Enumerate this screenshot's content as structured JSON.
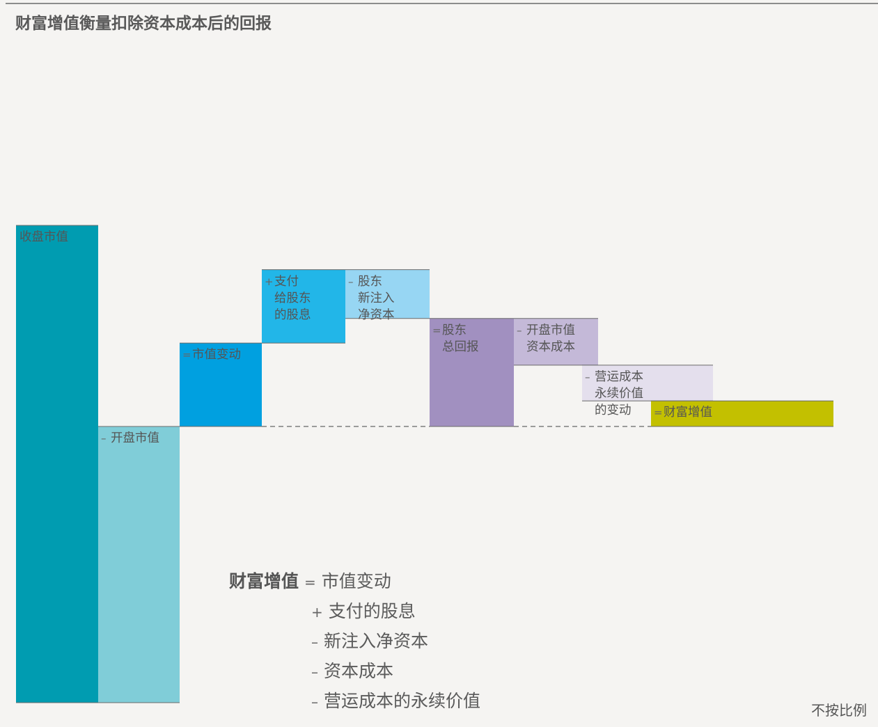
{
  "title": "财富增值衡量扣除资本成本后的回报",
  "colors": {
    "closing_market_value": "#009cb1",
    "opening_market_value": "#80cdd8",
    "market_value_change": "#00a0e0",
    "dividends": "#22b6e8",
    "new_equity": "#97d6f3",
    "total_shareholder_return": "#a190c0",
    "opening_capital_cost": "#c4b9d8",
    "perpetuity_change": "#e4dfed",
    "wealth_added": "#c3c000"
  },
  "chart_data": {
    "type": "waterfall",
    "title": "财富增值衡量扣除资本成本后的回报",
    "scale_note": "不按比例",
    "steps": [
      {
        "label": "收盘市值",
        "op": "",
        "start": 0,
        "end": 100
      },
      {
        "label": "开盘市值",
        "op": "–",
        "start": 100,
        "end": 0
      },
      {
        "label": "市值变动",
        "op": "=",
        "start": 0,
        "end": 41.5
      },
      {
        "label": "支付\n给股东\n的股息",
        "op": "+",
        "start": 41.5,
        "end": 78
      },
      {
        "label": "股东\n新注入\n净资本",
        "op": "–",
        "start": 78,
        "end": 53.7
      },
      {
        "label": "股东\n总回报",
        "op": "=",
        "start": 0,
        "end": 53.7
      },
      {
        "label": "开盘市值\n资本成本",
        "op": "–",
        "start": 53.7,
        "end": 30.5
      },
      {
        "label": "营运成本\n永续价值\n的变动",
        "op": "–",
        "start": 30.5,
        "end": 12.7
      },
      {
        "label": "财富增值",
        "op": "=",
        "start": 0,
        "end": 12.7
      }
    ]
  },
  "formula": {
    "lead": "财富增值",
    "rows": [
      {
        "op": "=",
        "text": "市值变动"
      },
      {
        "op": "+",
        "text": "支付的股息"
      },
      {
        "op": "–",
        "text": "新注入净资本"
      },
      {
        "op": "–",
        "text": "资本成本"
      },
      {
        "op": "–",
        "text": "营运成本的永续价值"
      }
    ]
  }
}
